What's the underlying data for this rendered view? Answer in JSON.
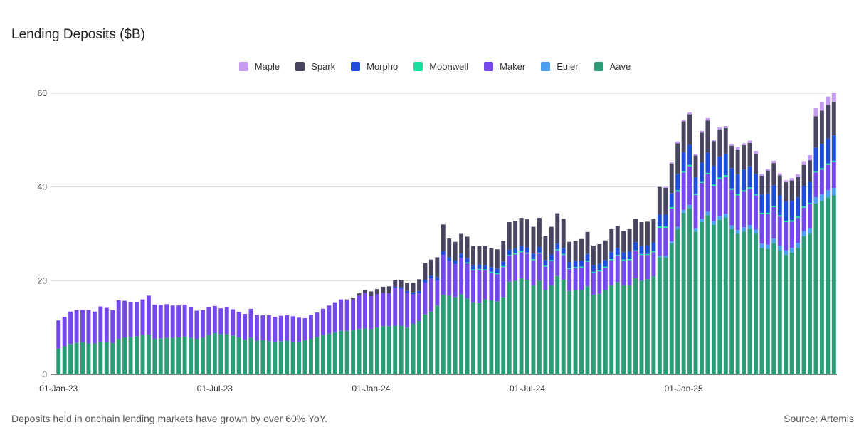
{
  "chart_data": {
    "type": "bar",
    "stacked": true,
    "title": "Lending Deposits ($B)",
    "xlabel": "",
    "ylabel": "",
    "ylim": [
      0,
      60
    ],
    "yticks": [
      0,
      20,
      40,
      60
    ],
    "grid": true,
    "legend_position": "top-center",
    "x_tick_labels": [
      {
        "label": "01-Jan-23",
        "index": 0
      },
      {
        "label": "01-Jul-23",
        "index": 26
      },
      {
        "label": "01-Jan-24",
        "index": 52
      },
      {
        "label": "01-Jul-24",
        "index": 78
      },
      {
        "label": "01-Jan-25",
        "index": 104
      }
    ],
    "legend_order": [
      "Maple",
      "Spark",
      "Morpho",
      "Moonwell",
      "Maker",
      "Euler",
      "Aave"
    ],
    "stack_order": [
      "Aave",
      "Euler",
      "Maker",
      "Moonwell",
      "Morpho",
      "Spark",
      "Maple"
    ],
    "colors": {
      "Maple": "#c59cf2",
      "Spark": "#474560",
      "Morpho": "#1f4ddb",
      "Moonwell": "#16e0a0",
      "Maker": "#7548ec",
      "Euler": "#4a9ef0",
      "Aave": "#2a9d77"
    },
    "total": [
      11.5,
      12.3,
      13.4,
      13.7,
      13.8,
      13.7,
      13.4,
      14.5,
      14.2,
      13.7,
      15.8,
      15.7,
      15.5,
      15.5,
      16.0,
      16.8,
      14.9,
      14.8,
      15.0,
      14.7,
      14.7,
      14.9,
      14.3,
      13.6,
      13.7,
      14.3,
      14.6,
      14.1,
      14.3,
      13.9,
      13.3,
      12.9,
      14.0,
      12.7,
      12.6,
      12.6,
      12.3,
      12.5,
      12.6,
      12.4,
      12.1,
      12.0,
      12.7,
      13.2,
      14.0,
      14.7,
      15.4,
      16.0,
      16.0,
      16.3,
      17.3,
      18.0,
      17.7,
      18.2,
      18.7,
      18.8,
      20.2,
      20.2,
      19.5,
      19.6,
      20.3,
      23.7,
      24.5,
      25.0,
      32.0,
      29.2,
      28.5,
      30.2,
      29.4,
      27.4,
      27.4,
      27.4,
      26.9,
      26.7,
      28.5,
      32.5,
      32.8,
      33.3,
      33.0,
      31.5,
      33.4,
      29.6,
      31.5,
      34.4,
      33.2,
      28.3,
      28.5,
      28.9,
      30.4,
      27.5,
      27.8,
      28.6,
      31.0,
      31.7,
      30.6,
      31.0,
      33.2,
      32.5,
      32.6,
      33.1,
      40.0,
      40.0,
      45.3,
      49.7,
      54.4,
      55.9,
      47.1,
      52.0,
      54.7,
      50.0,
      52.7,
      53.0,
      49.2,
      48.5,
      49.3,
      49.9,
      47.7,
      42.8,
      43.8,
      45.4,
      42.9,
      41.4,
      41.6,
      42.7,
      45.6,
      46.6,
      54.9,
      56.2,
      57.3,
      58.0
    ],
    "series": [
      {
        "name": "Aave",
        "values": [
          5.5,
          6.0,
          6.5,
          6.8,
          6.9,
          6.6,
          6.6,
          7.0,
          6.9,
          6.7,
          7.6,
          7.9,
          8.0,
          8.1,
          8.4,
          8.5,
          7.6,
          7.7,
          7.8,
          7.8,
          7.9,
          8.1,
          7.8,
          7.6,
          7.8,
          8.4,
          8.8,
          8.6,
          8.6,
          8.3,
          7.9,
          7.4,
          7.8,
          7.2,
          7.3,
          7.1,
          7.0,
          7.1,
          7.2,
          7.0,
          7.0,
          7.3,
          7.6,
          8.0,
          8.4,
          8.7,
          9.0,
          9.3,
          9.3,
          9.4,
          9.7,
          9.8,
          9.7,
          10.0,
          10.3,
          10.3,
          10.4,
          10.4,
          10.0,
          10.8,
          11.4,
          12.8,
          13.4,
          14.7,
          17.0,
          16.8,
          16.5,
          17.1,
          16.2,
          15.4,
          15.3,
          16.0,
          15.8,
          15.6,
          16.5,
          19.8,
          20.0,
          20.5,
          20.2,
          19.0,
          20.0,
          18.0,
          19.0,
          21.0,
          20.2,
          17.8,
          18.0,
          18.0,
          18.8,
          17.0,
          17.2,
          18.0,
          19.0,
          19.7,
          19.0,
          19.0,
          20.5,
          20.0,
          20.3,
          20.9,
          25.0,
          25.0,
          28.0,
          31.0,
          34.5,
          35.5,
          30.5,
          32.5,
          34.0,
          32.0,
          33.0,
          33.5,
          31.0,
          30.0,
          30.5,
          31.0,
          30.0,
          27.0,
          26.8,
          28.0,
          26.5,
          25.5,
          26.0,
          27.0,
          29.5,
          30.0,
          36.5,
          37.0,
          37.8,
          38.2
        ]
      },
      {
        "name": "Euler",
        "values": [
          0,
          0,
          0,
          0,
          0,
          0,
          0,
          0,
          0,
          0,
          0,
          0,
          0,
          0,
          0,
          0,
          0,
          0,
          0,
          0,
          0,
          0,
          0,
          0,
          0,
          0,
          0,
          0,
          0,
          0,
          0,
          0,
          0,
          0,
          0,
          0,
          0,
          0,
          0,
          0,
          0,
          0,
          0,
          0,
          0,
          0,
          0,
          0,
          0,
          0,
          0,
          0,
          0,
          0,
          0,
          0,
          0,
          0,
          0,
          0,
          0,
          0,
          0,
          0,
          0,
          0,
          0,
          0,
          0,
          0,
          0,
          0,
          0,
          0,
          0,
          0,
          0,
          0,
          0,
          0,
          0,
          0,
          0,
          0,
          0,
          0,
          0,
          0,
          0,
          0,
          0,
          0,
          0,
          0,
          0,
          0,
          0,
          0,
          0,
          0,
          0.3,
          0.3,
          0.4,
          0.5,
          0.6,
          0.7,
          0.6,
          0.7,
          0.7,
          0.7,
          0.7,
          0.8,
          0.8,
          0.8,
          0.9,
          0.9,
          0.9,
          0.9,
          0.9,
          1.0,
          1.0,
          1.0,
          1.0,
          1.1,
          1.1,
          1.2,
          1.3,
          1.4,
          1.5,
          1.6
        ]
      },
      {
        "name": "Maker",
        "values": [
          6.0,
          6.3,
          6.9,
          6.9,
          6.9,
          7.1,
          6.8,
          7.5,
          7.3,
          7.0,
          8.2,
          7.8,
          7.5,
          7.4,
          7.6,
          8.3,
          7.3,
          7.1,
          7.2,
          6.9,
          6.8,
          6.8,
          6.5,
          6.0,
          5.9,
          5.9,
          5.8,
          5.5,
          5.7,
          5.6,
          5.4,
          5.5,
          6.2,
          5.5,
          5.3,
          5.5,
          5.3,
          5.4,
          5.4,
          5.4,
          5.1,
          4.7,
          5.1,
          5.2,
          5.6,
          6.0,
          6.4,
          6.7,
          6.5,
          6.6,
          7.1,
          7.6,
          7.0,
          7.1,
          7.1,
          7.0,
          8.0,
          7.9,
          7.4,
          6.3,
          5.9,
          6.8,
          7.1,
          5.3,
          8.5,
          7.4,
          7.0,
          7.8,
          7.5,
          6.8,
          7.0,
          6.2,
          5.9,
          5.8,
          6.4,
          5.5,
          5.6,
          5.6,
          5.6,
          5.4,
          5.8,
          5.0,
          5.2,
          5.5,
          5.3,
          4.7,
          4.7,
          4.8,
          5.3,
          4.7,
          4.8,
          4.8,
          5.4,
          5.6,
          5.3,
          5.4,
          5.8,
          5.5,
          5.2,
          5.2,
          6.0,
          6.0,
          7.0,
          7.5,
          8.0,
          8.2,
          7.2,
          7.7,
          8.0,
          7.5,
          8.0,
          7.9,
          7.6,
          7.4,
          7.6,
          7.7,
          7.3,
          6.3,
          6.5,
          6.7,
          6.2,
          6.0,
          5.6,
          5.3,
          5.0,
          5.1,
          5.3,
          5.3,
          5.4,
          5.5
        ]
      },
      {
        "name": "Moonwell",
        "values": [
          0,
          0,
          0,
          0,
          0,
          0,
          0,
          0,
          0,
          0,
          0,
          0,
          0,
          0,
          0,
          0,
          0,
          0,
          0,
          0,
          0,
          0,
          0,
          0,
          0,
          0,
          0,
          0,
          0,
          0,
          0,
          0,
          0,
          0,
          0,
          0,
          0,
          0,
          0,
          0,
          0,
          0,
          0,
          0,
          0,
          0,
          0,
          0,
          0,
          0,
          0,
          0,
          0,
          0,
          0,
          0,
          0,
          0,
          0,
          0,
          0,
          0,
          0,
          0,
          0,
          0,
          0,
          0,
          0.2,
          0.2,
          0.2,
          0.2,
          0.2,
          0.2,
          0.2,
          0.2,
          0.2,
          0.2,
          0.2,
          0.2,
          0.2,
          0.2,
          0.2,
          0.2,
          0.2,
          0.2,
          0.2,
          0.2,
          0.2,
          0.2,
          0.2,
          0.2,
          0.2,
          0.2,
          0.2,
          0.2,
          0.2,
          0.2,
          0.2,
          0.2,
          0.3,
          0.3,
          0.3,
          0.3,
          0.3,
          0.3,
          0.3,
          0.3,
          0.3,
          0.3,
          0.3,
          0.3,
          0.3,
          0.3,
          0.3,
          0.3,
          0.3,
          0.3,
          0.3,
          0.3,
          0.3,
          0.3,
          0.3,
          0.3,
          0.3,
          0.3,
          0.3,
          0.3,
          0.3,
          0.3
        ]
      },
      {
        "name": "Morpho",
        "values": [
          0,
          0,
          0,
          0,
          0,
          0,
          0,
          0,
          0,
          0,
          0,
          0,
          0,
          0,
          0,
          0,
          0,
          0,
          0,
          0,
          0,
          0,
          0,
          0,
          0,
          0,
          0,
          0,
          0,
          0,
          0,
          0,
          0,
          0,
          0,
          0,
          0,
          0,
          0,
          0,
          0,
          0,
          0,
          0,
          0,
          0,
          0,
          0,
          0,
          0,
          0,
          0,
          0,
          0,
          0,
          0,
          0.3,
          0.3,
          0.4,
          0.4,
          0.5,
          0.6,
          0.6,
          0.7,
          0.8,
          0.8,
          0.8,
          0.9,
          0.9,
          0.9,
          0.9,
          0.9,
          1.0,
          1.0,
          1.0,
          1.1,
          1.1,
          1.1,
          1.1,
          1.2,
          1.2,
          1.2,
          1.2,
          1.2,
          1.3,
          1.3,
          1.3,
          1.3,
          1.4,
          1.4,
          1.4,
          1.4,
          1.5,
          1.5,
          1.5,
          1.6,
          1.7,
          1.7,
          1.8,
          1.8,
          2.5,
          2.5,
          3.0,
          3.5,
          4.0,
          4.3,
          3.5,
          4.0,
          4.3,
          4.0,
          4.5,
          4.6,
          4.3,
          4.2,
          4.4,
          4.5,
          4.3,
          3.9,
          4.1,
          4.3,
          4.2,
          4.1,
          4.1,
          4.1,
          4.3,
          4.5,
          5.0,
          5.2,
          5.3,
          5.4
        ]
      },
      {
        "name": "Spark",
        "values": [
          0,
          0,
          0,
          0,
          0,
          0,
          0,
          0,
          0,
          0,
          0,
          0,
          0,
          0,
          0,
          0,
          0,
          0,
          0,
          0,
          0,
          0,
          0,
          0,
          0,
          0,
          0,
          0,
          0,
          0,
          0,
          0,
          0,
          0,
          0,
          0,
          0,
          0,
          0,
          0,
          0,
          0,
          0,
          0,
          0,
          0,
          0,
          0,
          0.2,
          0.3,
          0.5,
          0.6,
          1.0,
          1.1,
          1.3,
          1.5,
          1.5,
          1.6,
          1.7,
          2.1,
          2.5,
          3.5,
          3.4,
          4.3,
          5.7,
          4.0,
          4.0,
          4.2,
          4.6,
          4.1,
          4.0,
          4.1,
          4.0,
          4.1,
          4.4,
          5.9,
          5.9,
          6.0,
          6.0,
          5.7,
          6.2,
          5.2,
          5.9,
          6.5,
          6.2,
          4.3,
          4.3,
          4.6,
          4.7,
          4.2,
          4.2,
          4.2,
          4.9,
          4.7,
          4.6,
          4.8,
          5.0,
          5.1,
          5.1,
          5.0,
          5.9,
          5.7,
          6.3,
          6.5,
          6.6,
          6.5,
          4.6,
          6.4,
          6.9,
          5.3,
          5.8,
          5.5,
          4.8,
          5.2,
          5.2,
          5.0,
          4.3,
          4.0,
          4.9,
          4.8,
          4.3,
          4.1,
          4.4,
          4.3,
          4.5,
          4.6,
          6.7,
          7.1,
          7.2,
          7.2
        ]
      },
      {
        "name": "Maple",
        "values": [
          0,
          0,
          0,
          0,
          0,
          0,
          0,
          0,
          0,
          0,
          0,
          0,
          0,
          0,
          0,
          0,
          0,
          0,
          0,
          0,
          0,
          0,
          0,
          0,
          0,
          0,
          0,
          0,
          0,
          0,
          0,
          0,
          0,
          0,
          0,
          0,
          0,
          0,
          0,
          0,
          0,
          0,
          0,
          0,
          0,
          0,
          0,
          0,
          0,
          0,
          0,
          0,
          0,
          0,
          0,
          0,
          0,
          0,
          0,
          0,
          0,
          0,
          0,
          0,
          0,
          0,
          0,
          0,
          0,
          0,
          0,
          0,
          0,
          0,
          0,
          0,
          0,
          0,
          0,
          0,
          0,
          0,
          0,
          0,
          0,
          0,
          0,
          0,
          0,
          0,
          0,
          0,
          0,
          0,
          0,
          0,
          0,
          0,
          0,
          0,
          0,
          0.2,
          0.3,
          0.4,
          0.4,
          0.4,
          0.4,
          0.4,
          0.5,
          0.2,
          0.4,
          0.4,
          0.4,
          0.6,
          0.4,
          0.5,
          0.6,
          0.4,
          0.3,
          0.5,
          0.4,
          0.4,
          0.5,
          0.6,
          0.8,
          1.1,
          1.7,
          1.8,
          1.8,
          1.9
        ]
      }
    ]
  },
  "footer": {
    "note": "Deposits held in onchain lending markets have grown by over 60% YoY.",
    "source": "Source: Artemis"
  }
}
